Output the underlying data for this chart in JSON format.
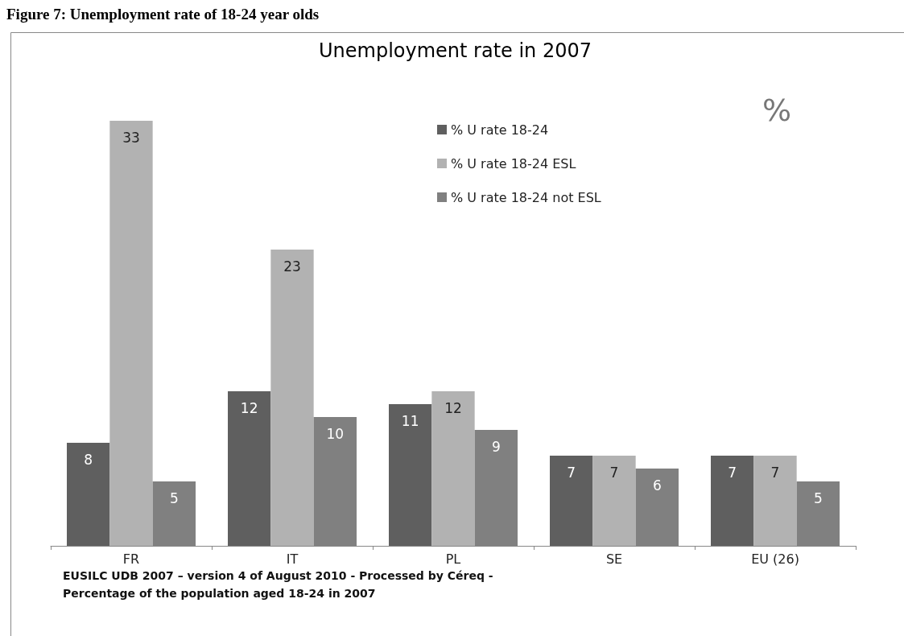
{
  "chart_data": {
    "type": "bar",
    "title": "Unemployment rate in 2007",
    "categories": [
      "FR",
      "IT",
      "PL",
      "SE",
      "EU (26)"
    ],
    "series": [
      {
        "name": "% U rate 18-24",
        "color": "#5f5f5f",
        "values": [
          8,
          12,
          11,
          7,
          7
        ]
      },
      {
        "name": "% U rate 18-24 ESL",
        "color": "#b2b2b2",
        "values": [
          33,
          23,
          12,
          7,
          7
        ]
      },
      {
        "name": "% U rate 18-24 not ESL",
        "color": "#808080",
        "values": [
          5,
          10,
          9,
          6,
          5
        ]
      }
    ],
    "data_labels": true,
    "legend": "top right",
    "annotations": [
      "Figure 7: Unemployment rate of 18-24 year olds",
      "%",
      "EUSILC UDB 2007 – version 4 of August 2010 - Processed by Céreq -",
      "Percentage of the population aged 18-24 in 2007"
    ]
  }
}
